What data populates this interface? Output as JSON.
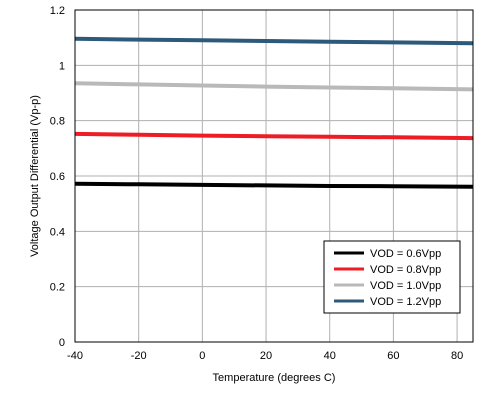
{
  "chart_data": {
    "type": "line",
    "title": "",
    "xlabel": "Temperature (degrees C)",
    "ylabel": "Voltage Output Differential (Vp-p)",
    "xlim": [
      -40,
      85
    ],
    "ylim": [
      0,
      1.2
    ],
    "x_ticks": [
      "-40",
      "-20",
      "0",
      "20",
      "40",
      "60",
      "80"
    ],
    "y_ticks": [
      "0",
      "0.2",
      "0.4",
      "0.6",
      "0.8",
      "1",
      "1.2"
    ],
    "grid": true,
    "legend_position": "bottom-right",
    "x": [
      -40,
      -20,
      0,
      20,
      40,
      60,
      85
    ],
    "series": [
      {
        "name": "VOD = 0.6Vpp",
        "color": "#000000",
        "values": [
          0.572,
          0.57,
          0.568,
          0.566,
          0.564,
          0.563,
          0.561
        ]
      },
      {
        "name": "VOD = 0.8Vpp",
        "color": "#ee1c24",
        "values": [
          0.752,
          0.749,
          0.746,
          0.744,
          0.742,
          0.74,
          0.737
        ]
      },
      {
        "name": "VOD = 1.0Vpp",
        "color": "#b9b9b9",
        "values": [
          0.935,
          0.931,
          0.927,
          0.923,
          0.92,
          0.917,
          0.913
        ]
      },
      {
        "name": "VOD = 1.2Vpp",
        "color": "#2d5a7a",
        "values": [
          1.096,
          1.093,
          1.091,
          1.088,
          1.085,
          1.083,
          1.08
        ]
      }
    ]
  }
}
